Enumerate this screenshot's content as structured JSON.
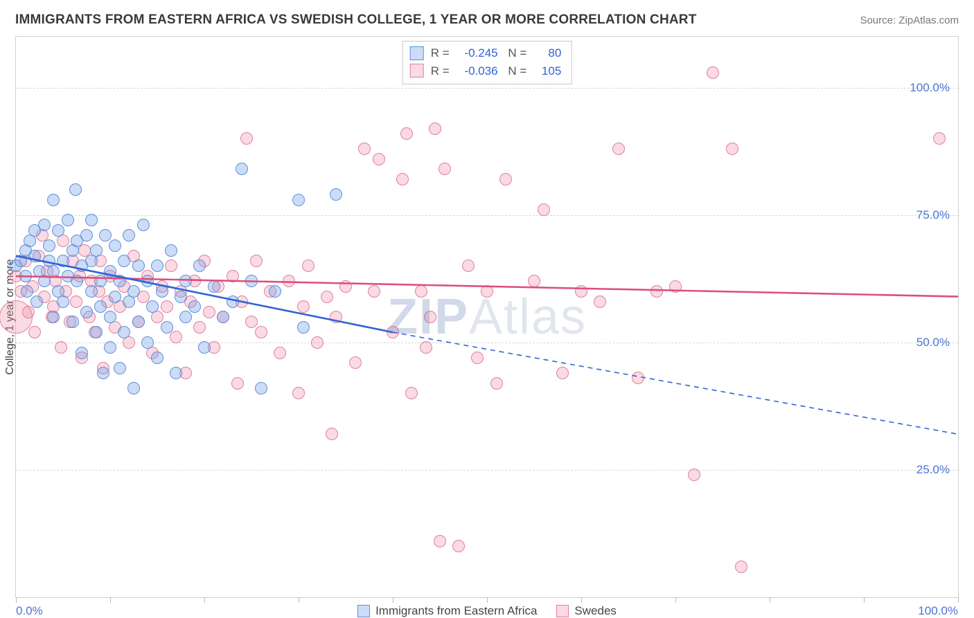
{
  "title": "IMMIGRANTS FROM EASTERN AFRICA VS SWEDISH COLLEGE, 1 YEAR OR MORE CORRELATION CHART",
  "source": "Source: ZipAtlas.com",
  "ylabel": "College, 1 year or more",
  "watermark_a": "ZIP",
  "watermark_b": "Atlas",
  "chart": {
    "xlim": [
      0,
      100
    ],
    "ylim": [
      0,
      110
    ],
    "xticks": [
      0,
      10,
      20,
      30,
      40,
      50,
      60,
      70,
      80,
      90,
      100
    ],
    "xtick_labels": {
      "0": "0.0%",
      "100": "100.0%"
    },
    "yticks": [
      25,
      50,
      75,
      100
    ],
    "ytick_labels": {
      "25": "25.0%",
      "50": "50.0%",
      "75": "75.0%",
      "100": "100.0%"
    },
    "grid_color": "#d8d8d8",
    "axis_color": "#d0d0d0",
    "tick_label_color": "#4a74d6",
    "point_radius": 9,
    "point_border_width": 1.3,
    "line_width_solid": 2.6,
    "line_width_dash": 1.6,
    "series": [
      {
        "name": "Immigrants from Eastern Africa",
        "fill": "rgba(108,156,231,0.35)",
        "stroke": "#5d8fd8",
        "line_color": "#2f63d6",
        "R": "-0.245",
        "N": "80",
        "trend": {
          "x1": 0,
          "y1": 67,
          "x2": 40,
          "y2": 52
        },
        "trend_ext": {
          "x1": 40,
          "y1": 52,
          "x2": 100,
          "y2": 32
        },
        "points": [
          [
            0,
            65
          ],
          [
            0.5,
            66
          ],
          [
            1,
            63
          ],
          [
            1,
            68
          ],
          [
            1.5,
            70
          ],
          [
            1.2,
            60
          ],
          [
            2,
            67
          ],
          [
            2,
            72
          ],
          [
            2.5,
            64
          ],
          [
            2.2,
            58
          ],
          [
            3,
            73
          ],
          [
            3,
            62
          ],
          [
            3.5,
            69
          ],
          [
            3.5,
            66
          ],
          [
            4,
            78
          ],
          [
            4,
            64
          ],
          [
            4,
            55
          ],
          [
            4.5,
            60
          ],
          [
            4.5,
            72
          ],
          [
            5,
            66
          ],
          [
            5,
            58
          ],
          [
            5.5,
            74
          ],
          [
            5.5,
            63
          ],
          [
            6,
            68
          ],
          [
            6,
            54
          ],
          [
            6.5,
            70
          ],
          [
            6.5,
            62
          ],
          [
            6.3,
            80
          ],
          [
            7,
            65
          ],
          [
            7,
            48
          ],
          [
            7.5,
            71
          ],
          [
            7.5,
            56
          ],
          [
            8,
            66
          ],
          [
            8,
            60
          ],
          [
            8,
            74
          ],
          [
            8.5,
            52
          ],
          [
            8.5,
            68
          ],
          [
            9,
            57
          ],
          [
            9,
            62
          ],
          [
            9.3,
            44
          ],
          [
            9.5,
            71
          ],
          [
            10,
            55
          ],
          [
            10,
            64
          ],
          [
            10,
            49
          ],
          [
            10.5,
            69
          ],
          [
            10.5,
            59
          ],
          [
            11,
            45
          ],
          [
            11,
            62
          ],
          [
            11.5,
            66
          ],
          [
            11.5,
            52
          ],
          [
            12,
            58
          ],
          [
            12,
            71
          ],
          [
            12.5,
            41
          ],
          [
            12.5,
            60
          ],
          [
            13,
            54
          ],
          [
            13,
            65
          ],
          [
            13.5,
            73
          ],
          [
            14,
            62
          ],
          [
            14,
            50
          ],
          [
            14.5,
            57
          ],
          [
            15,
            65
          ],
          [
            15,
            47
          ],
          [
            15.5,
            60
          ],
          [
            16,
            53
          ],
          [
            16.5,
            68
          ],
          [
            17,
            44
          ],
          [
            17.5,
            59
          ],
          [
            18,
            62
          ],
          [
            18,
            55
          ],
          [
            19,
            57
          ],
          [
            19.5,
            65
          ],
          [
            20,
            49
          ],
          [
            21,
            61
          ],
          [
            22,
            55
          ],
          [
            23,
            58
          ],
          [
            24,
            84
          ],
          [
            25,
            62
          ],
          [
            26,
            41
          ],
          [
            27.5,
            60
          ],
          [
            30,
            78
          ],
          [
            30.5,
            53
          ],
          [
            34,
            79
          ]
        ]
      },
      {
        "name": "Swedes",
        "fill": "rgba(238,140,168,0.32)",
        "stroke": "#e07f9e",
        "line_color": "#dd4f7a",
        "R": "-0.036",
        "N": "105",
        "trend": {
          "x1": 0,
          "y1": 63,
          "x2": 100,
          "y2": 59
        },
        "points": [
          [
            0,
            55,
            24
          ],
          [
            0,
            63
          ],
          [
            0.5,
            60
          ],
          [
            1,
            66
          ],
          [
            1.3,
            56
          ],
          [
            1.8,
            61
          ],
          [
            2,
            52
          ],
          [
            2.4,
            67
          ],
          [
            2.8,
            71
          ],
          [
            3,
            59
          ],
          [
            3.3,
            64
          ],
          [
            3.8,
            55
          ],
          [
            4,
            57
          ],
          [
            4.2,
            62
          ],
          [
            4.8,
            49
          ],
          [
            5,
            70
          ],
          [
            5.3,
            60
          ],
          [
            5.7,
            54
          ],
          [
            6,
            66
          ],
          [
            6.4,
            58
          ],
          [
            6.8,
            63
          ],
          [
            7,
            47
          ],
          [
            7.3,
            68
          ],
          [
            7.8,
            55
          ],
          [
            8,
            62
          ],
          [
            8.4,
            52
          ],
          [
            8.8,
            60
          ],
          [
            9,
            66
          ],
          [
            9.3,
            45
          ],
          [
            9.7,
            58
          ],
          [
            10,
            63
          ],
          [
            10.5,
            53
          ],
          [
            11,
            57
          ],
          [
            11.5,
            61
          ],
          [
            12,
            50
          ],
          [
            12.5,
            67
          ],
          [
            13,
            54
          ],
          [
            13.5,
            59
          ],
          [
            14,
            63
          ],
          [
            14.5,
            48
          ],
          [
            15,
            55
          ],
          [
            15.5,
            61
          ],
          [
            16,
            57
          ],
          [
            16.5,
            65
          ],
          [
            17,
            51
          ],
          [
            17.5,
            60
          ],
          [
            18,
            44
          ],
          [
            18.5,
            58
          ],
          [
            19,
            62
          ],
          [
            19.5,
            53
          ],
          [
            20,
            66
          ],
          [
            20.5,
            56
          ],
          [
            21,
            49
          ],
          [
            21.5,
            61
          ],
          [
            22,
            55
          ],
          [
            23,
            63
          ],
          [
            23.5,
            42
          ],
          [
            24,
            58
          ],
          [
            24.5,
            90
          ],
          [
            25,
            54
          ],
          [
            25.5,
            66
          ],
          [
            26,
            52
          ],
          [
            27,
            60
          ],
          [
            28,
            48
          ],
          [
            29,
            62
          ],
          [
            30,
            40
          ],
          [
            30.5,
            57
          ],
          [
            31,
            65
          ],
          [
            32,
            50
          ],
          [
            33,
            59
          ],
          [
            33.5,
            32
          ],
          [
            34,
            55
          ],
          [
            35,
            61
          ],
          [
            36,
            46
          ],
          [
            37,
            88
          ],
          [
            38,
            60
          ],
          [
            38.5,
            86
          ],
          [
            40,
            52
          ],
          [
            41,
            82
          ],
          [
            41.5,
            91
          ],
          [
            42,
            40
          ],
          [
            43,
            60
          ],
          [
            43.5,
            49
          ],
          [
            44,
            55
          ],
          [
            44.5,
            92
          ],
          [
            45,
            11
          ],
          [
            45.5,
            84
          ],
          [
            47,
            10
          ],
          [
            48,
            65
          ],
          [
            49,
            47
          ],
          [
            50,
            60
          ],
          [
            51,
            42
          ],
          [
            52,
            82
          ],
          [
            55,
            62
          ],
          [
            56,
            76
          ],
          [
            58,
            44
          ],
          [
            60,
            60
          ],
          [
            62,
            58
          ],
          [
            64,
            88
          ],
          [
            66,
            43
          ],
          [
            68,
            60
          ],
          [
            70,
            61
          ],
          [
            72,
            24
          ],
          [
            74,
            103
          ],
          [
            76,
            88
          ],
          [
            77,
            6
          ],
          [
            98,
            90
          ]
        ]
      }
    ]
  },
  "legend": {
    "series1_label": "Immigrants from Eastern Africa",
    "series2_label": "Swedes"
  }
}
